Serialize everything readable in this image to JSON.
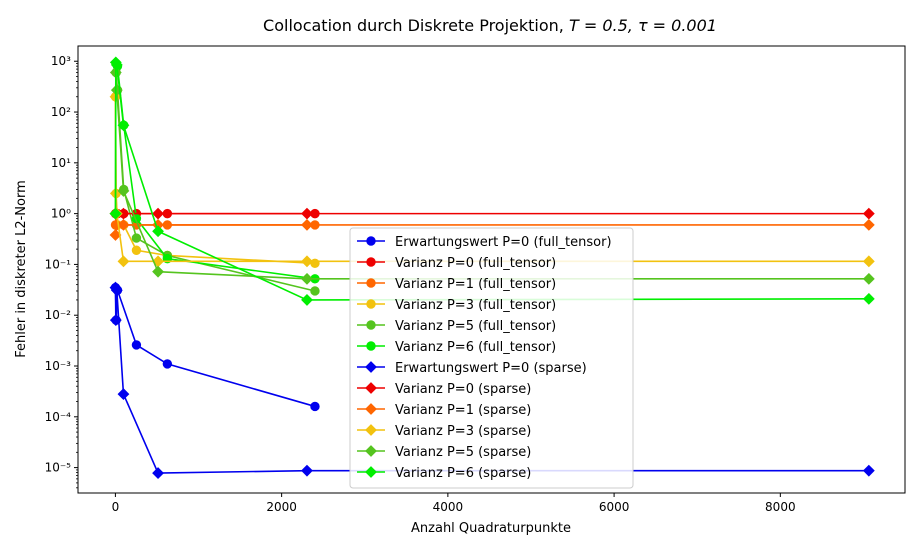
{
  "chart_data": {
    "type": "line",
    "title_prefix": "Collocation durch Diskrete Projektion, ",
    "title_math": "T = 0.5, τ = 0.001",
    "xlabel": "Anzahl Quadraturpunkte",
    "ylabel": "Fehler in diskreter L2-Norm",
    "xlim": [
      -450,
      9500
    ],
    "ylim_log10": [
      -5.5,
      3.3
    ],
    "yscale": "log",
    "xticks": [
      0,
      2000,
      4000,
      6000,
      8000
    ],
    "xtick_labels": [
      "0",
      "2000",
      "4000",
      "6000",
      "8000"
    ],
    "yticks_exp": [
      3,
      2,
      1,
      0,
      -1,
      -2,
      -3,
      -4,
      -5
    ],
    "ytick_labels": [
      "10³",
      "10²",
      "10¹",
      "10⁰",
      "10⁻¹",
      "10⁻²",
      "10⁻³",
      "10⁻⁴",
      "10⁻⁵"
    ],
    "legend_position": "lower-center",
    "series": [
      {
        "name": "Erwartungswert P=0 (full_tensor)",
        "color": "#0000ee",
        "marker": "circle",
        "x": [
          1,
          9,
          25,
          253,
          625,
          2401
        ],
        "y": [
          0.035,
          0.008,
          0.031,
          0.0026,
          0.0011,
          0.00016
        ]
      },
      {
        "name": "Varianz P=0 (full_tensor)",
        "color": "#ee0000",
        "marker": "circle",
        "x": [
          1,
          9,
          25,
          100,
          253,
          625,
          2401
        ],
        "y": [
          1.0,
          1.0,
          1.0,
          1.0,
          1.0,
          1.0,
          1.0
        ]
      },
      {
        "name": "Varianz P=1 (full_tensor)",
        "color": "#ff6600",
        "marker": "circle",
        "x": [
          1,
          9,
          25,
          100,
          253,
          625,
          2401
        ],
        "y": [
          0.6,
          0.6,
          0.6,
          0.6,
          0.6,
          0.6,
          0.6
        ]
      },
      {
        "name": "Varianz P=3 (full_tensor)",
        "color": "#f2c20f",
        "marker": "circle",
        "x": [
          1,
          9,
          25,
          100,
          253,
          625,
          2401
        ],
        "y": [
          200,
          2.5,
          0.6,
          0.6,
          0.19,
          0.15,
          0.105
        ]
      },
      {
        "name": "Varianz P=5 (full_tensor)",
        "color": "#55c41f",
        "marker": "circle",
        "x": [
          9,
          25,
          100,
          253,
          625,
          2401
        ],
        "y": [
          600,
          270,
          3.0,
          0.33,
          0.15,
          0.03
        ]
      },
      {
        "name": "Varianz P=6 (full_tensor)",
        "color": "#00ee00",
        "marker": "circle",
        "x": [
          9,
          25,
          100,
          253,
          625,
          2401
        ],
        "y": [
          900,
          800,
          55,
          0.8,
          0.13,
          0.052
        ]
      },
      {
        "name": "Erwartungswert P=0 (sparse)",
        "color": "#0000ee",
        "marker": "diamond",
        "x": [
          1,
          5,
          17,
          97,
          513,
          2305,
          9065
        ],
        "y": [
          0.035,
          0.008,
          0.031,
          0.00028,
          7.8e-06,
          8.7e-06,
          8.7e-06
        ]
      },
      {
        "name": "Varianz P=0 (sparse)",
        "color": "#ee0000",
        "marker": "diamond",
        "x": [
          1,
          5,
          17,
          97,
          513,
          2305,
          9065
        ],
        "y": [
          1.0,
          1.0,
          1.0,
          1.0,
          1.0,
          1.0,
          1.0
        ]
      },
      {
        "name": "Varianz P=1 (sparse)",
        "color": "#ff6600",
        "marker": "diamond",
        "x": [
          1,
          5,
          17,
          97,
          513,
          2305,
          9065
        ],
        "y": [
          0.38,
          1.0,
          0.6,
          0.6,
          0.6,
          0.6,
          0.6
        ]
      },
      {
        "name": "Varianz P=3 (sparse)",
        "color": "#f2c20f",
        "marker": "diamond",
        "x": [
          1,
          5,
          17,
          97,
          513,
          2305,
          9065
        ],
        "y": [
          200,
          2.5,
          1.0,
          0.115,
          0.115,
          0.115,
          0.115
        ]
      },
      {
        "name": "Varianz P=5 (sparse)",
        "color": "#55c41f",
        "marker": "diamond",
        "x": [
          1,
          5,
          17,
          97,
          513,
          2305,
          9065
        ],
        "y": [
          1.0,
          600,
          270,
          2.8,
          0.072,
          0.052,
          0.052
        ]
      },
      {
        "name": "Varianz P=6 (sparse)",
        "color": "#00ee00",
        "marker": "diamond",
        "x": [
          1,
          5,
          17,
          97,
          513,
          2305,
          9065
        ],
        "y": [
          1.0,
          950,
          850,
          55,
          0.45,
          0.02,
          0.021
        ]
      }
    ]
  }
}
